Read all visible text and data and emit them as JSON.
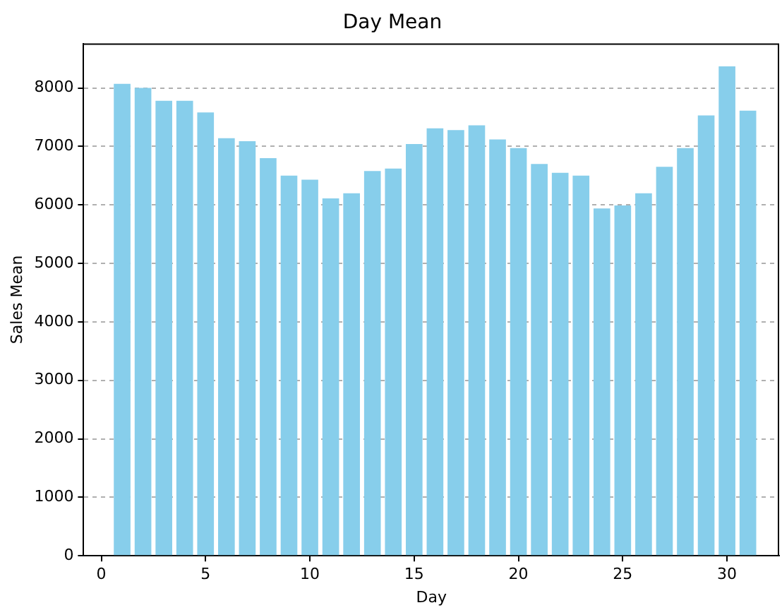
{
  "chart_data": {
    "type": "bar",
    "title": "Day Mean",
    "xlabel": "Day",
    "ylabel": "Sales Mean",
    "x": [
      1,
      2,
      3,
      4,
      5,
      6,
      7,
      8,
      9,
      10,
      11,
      12,
      13,
      14,
      15,
      16,
      17,
      18,
      19,
      20,
      21,
      22,
      23,
      24,
      25,
      26,
      27,
      28,
      29,
      30,
      31
    ],
    "values": [
      8070,
      8000,
      7780,
      7780,
      7580,
      7140,
      7090,
      6800,
      6500,
      6430,
      6110,
      6200,
      6580,
      6620,
      7040,
      7310,
      7280,
      7360,
      7120,
      6970,
      6700,
      6550,
      6500,
      5940,
      5990,
      6200,
      6650,
      6970,
      7530,
      8370,
      7610
    ],
    "color": "#87ceeb",
    "xlim": [
      -0.85,
      32.5
    ],
    "xticks": [
      0,
      5,
      10,
      15,
      20,
      25,
      30
    ],
    "ylim": [
      0,
      8760
    ],
    "yticks": [
      0,
      1000,
      2000,
      3000,
      4000,
      5000,
      6000,
      7000,
      8000
    ],
    "grid": "y"
  }
}
